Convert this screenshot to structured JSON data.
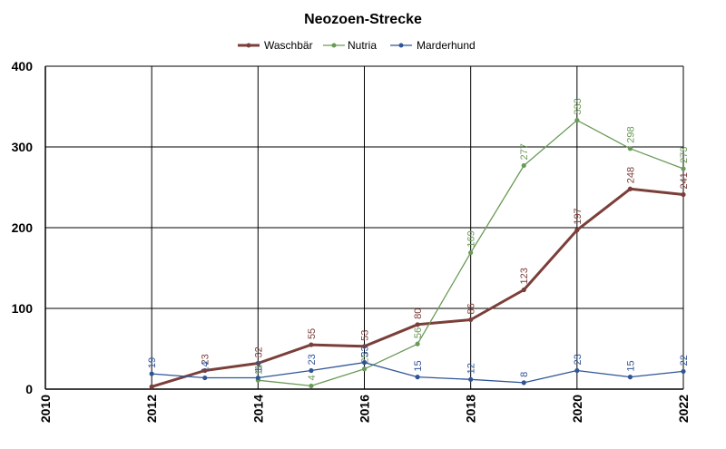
{
  "chart_data": {
    "type": "line",
    "title": "Neozoen-Strecke",
    "xlabel": "",
    "ylabel": "",
    "xlim": [
      2010,
      2022
    ],
    "ylim": [
      0,
      400
    ],
    "x_ticks": [
      "2010",
      "2012",
      "2014",
      "2016",
      "2018",
      "2020",
      "2022"
    ],
    "y_ticks": [
      "0",
      "100",
      "200",
      "300",
      "400"
    ],
    "grid": true,
    "legend_position": "top",
    "series": [
      {
        "name": "Waschbär",
        "color": "#7b3f3a",
        "line_width": "thick",
        "points": [
          {
            "x": 2012,
            "y": 3,
            "label": ""
          },
          {
            "x": 2013,
            "y": 23,
            "label": "23"
          },
          {
            "x": 2014,
            "y": 32,
            "label": "32"
          },
          {
            "x": 2015,
            "y": 55,
            "label": "55"
          },
          {
            "x": 2016,
            "y": 53,
            "label": "53"
          },
          {
            "x": 2017,
            "y": 80,
            "label": "80"
          },
          {
            "x": 2018,
            "y": 86,
            "label": "86"
          },
          {
            "x": 2019,
            "y": 123,
            "label": "123"
          },
          {
            "x": 2020,
            "y": 197,
            "label": "197"
          },
          {
            "x": 2021,
            "y": 248,
            "label": "248"
          },
          {
            "x": 2022,
            "y": 241,
            "label": "241"
          }
        ]
      },
      {
        "name": "Nutria",
        "color": "#6a9a57",
        "line_width": "thin",
        "points": [
          {
            "x": 2014,
            "y": 11,
            "label": "11"
          },
          {
            "x": 2015,
            "y": 4,
            "label": "4"
          },
          {
            "x": 2016,
            "y": 25,
            "label": "25"
          },
          {
            "x": 2017,
            "y": 56,
            "label": "56"
          },
          {
            "x": 2018,
            "y": 169,
            "label": "169"
          },
          {
            "x": 2019,
            "y": 277,
            "label": "277"
          },
          {
            "x": 2020,
            "y": 333,
            "label": "333"
          },
          {
            "x": 2021,
            "y": 298,
            "label": "298"
          },
          {
            "x": 2022,
            "y": 273,
            "label": "273"
          }
        ]
      },
      {
        "name": "Marderhund",
        "color": "#2f5597",
        "line_width": "thin",
        "points": [
          {
            "x": 2012,
            "y": 19,
            "label": "19"
          },
          {
            "x": 2013,
            "y": 14,
            "label": "14"
          },
          {
            "x": 2014,
            "y": 14,
            "label": "14"
          },
          {
            "x": 2015,
            "y": 23,
            "label": "23"
          },
          {
            "x": 2016,
            "y": 33,
            "label": "33"
          },
          {
            "x": 2017,
            "y": 15,
            "label": "15"
          },
          {
            "x": 2018,
            "y": 12,
            "label": "12"
          },
          {
            "x": 2019,
            "y": 8,
            "label": "8"
          },
          {
            "x": 2020,
            "y": 23,
            "label": "23"
          },
          {
            "x": 2021,
            "y": 15,
            "label": "15"
          },
          {
            "x": 2022,
            "y": 22,
            "label": "22"
          }
        ]
      }
    ]
  }
}
